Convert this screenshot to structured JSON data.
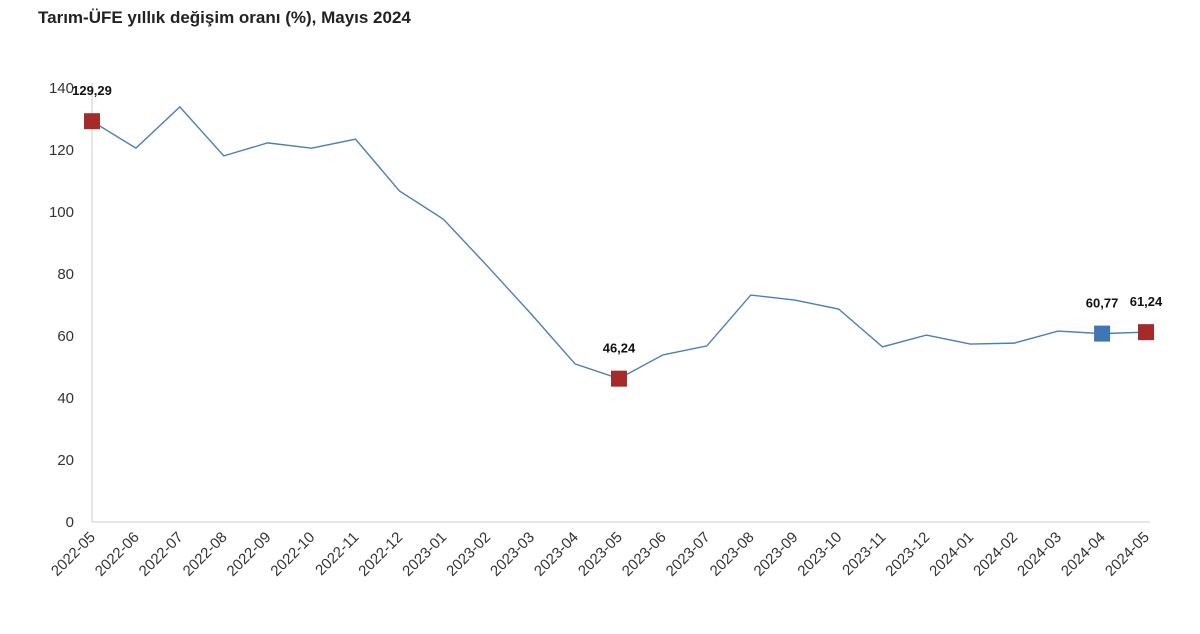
{
  "chart_data": {
    "type": "line",
    "title": "Tarım-ÜFE yıllık değişim oranı (%), Mayıs 2024",
    "xlabel": "",
    "ylabel": "",
    "ylim": [
      0,
      140
    ],
    "yticks": [
      "0",
      "20",
      "40",
      "60",
      "80",
      "100",
      "120",
      "140"
    ],
    "grid": false,
    "categories": [
      "2022-05",
      "2022-06",
      "2022-07",
      "2022-08",
      "2022-09",
      "2022-10",
      "2022-11",
      "2022-12",
      "2023-01",
      "2023-02",
      "2023-03",
      "2023-04",
      "2023-05",
      "2023-06",
      "2023-07",
      "2023-08",
      "2023-09",
      "2023-10",
      "2023-11",
      "2023-12",
      "2024-01",
      "2024-02",
      "2024-03",
      "2024-04",
      "2024-05"
    ],
    "series": [
      {
        "name": "Tarım-ÜFE",
        "color": "#4a7fb5",
        "values": [
          129.29,
          120.6,
          133.9,
          118.1,
          122.3,
          120.6,
          123.5,
          106.8,
          97.7,
          82.6,
          67.1,
          51.0,
          46.24,
          53.9,
          56.8,
          73.2,
          71.6,
          68.7,
          56.5,
          60.3,
          57.4,
          57.7,
          61.6,
          60.77,
          61.24
        ]
      }
    ],
    "highlights": [
      {
        "index": 0,
        "label": "129,29",
        "color": "#a52a2a"
      },
      {
        "index": 12,
        "label": "46,24",
        "color": "#a52a2a"
      },
      {
        "index": 23,
        "label": "60,77",
        "color": "#3f76b3"
      },
      {
        "index": 24,
        "label": "61,24",
        "color": "#a52a2a"
      }
    ]
  }
}
